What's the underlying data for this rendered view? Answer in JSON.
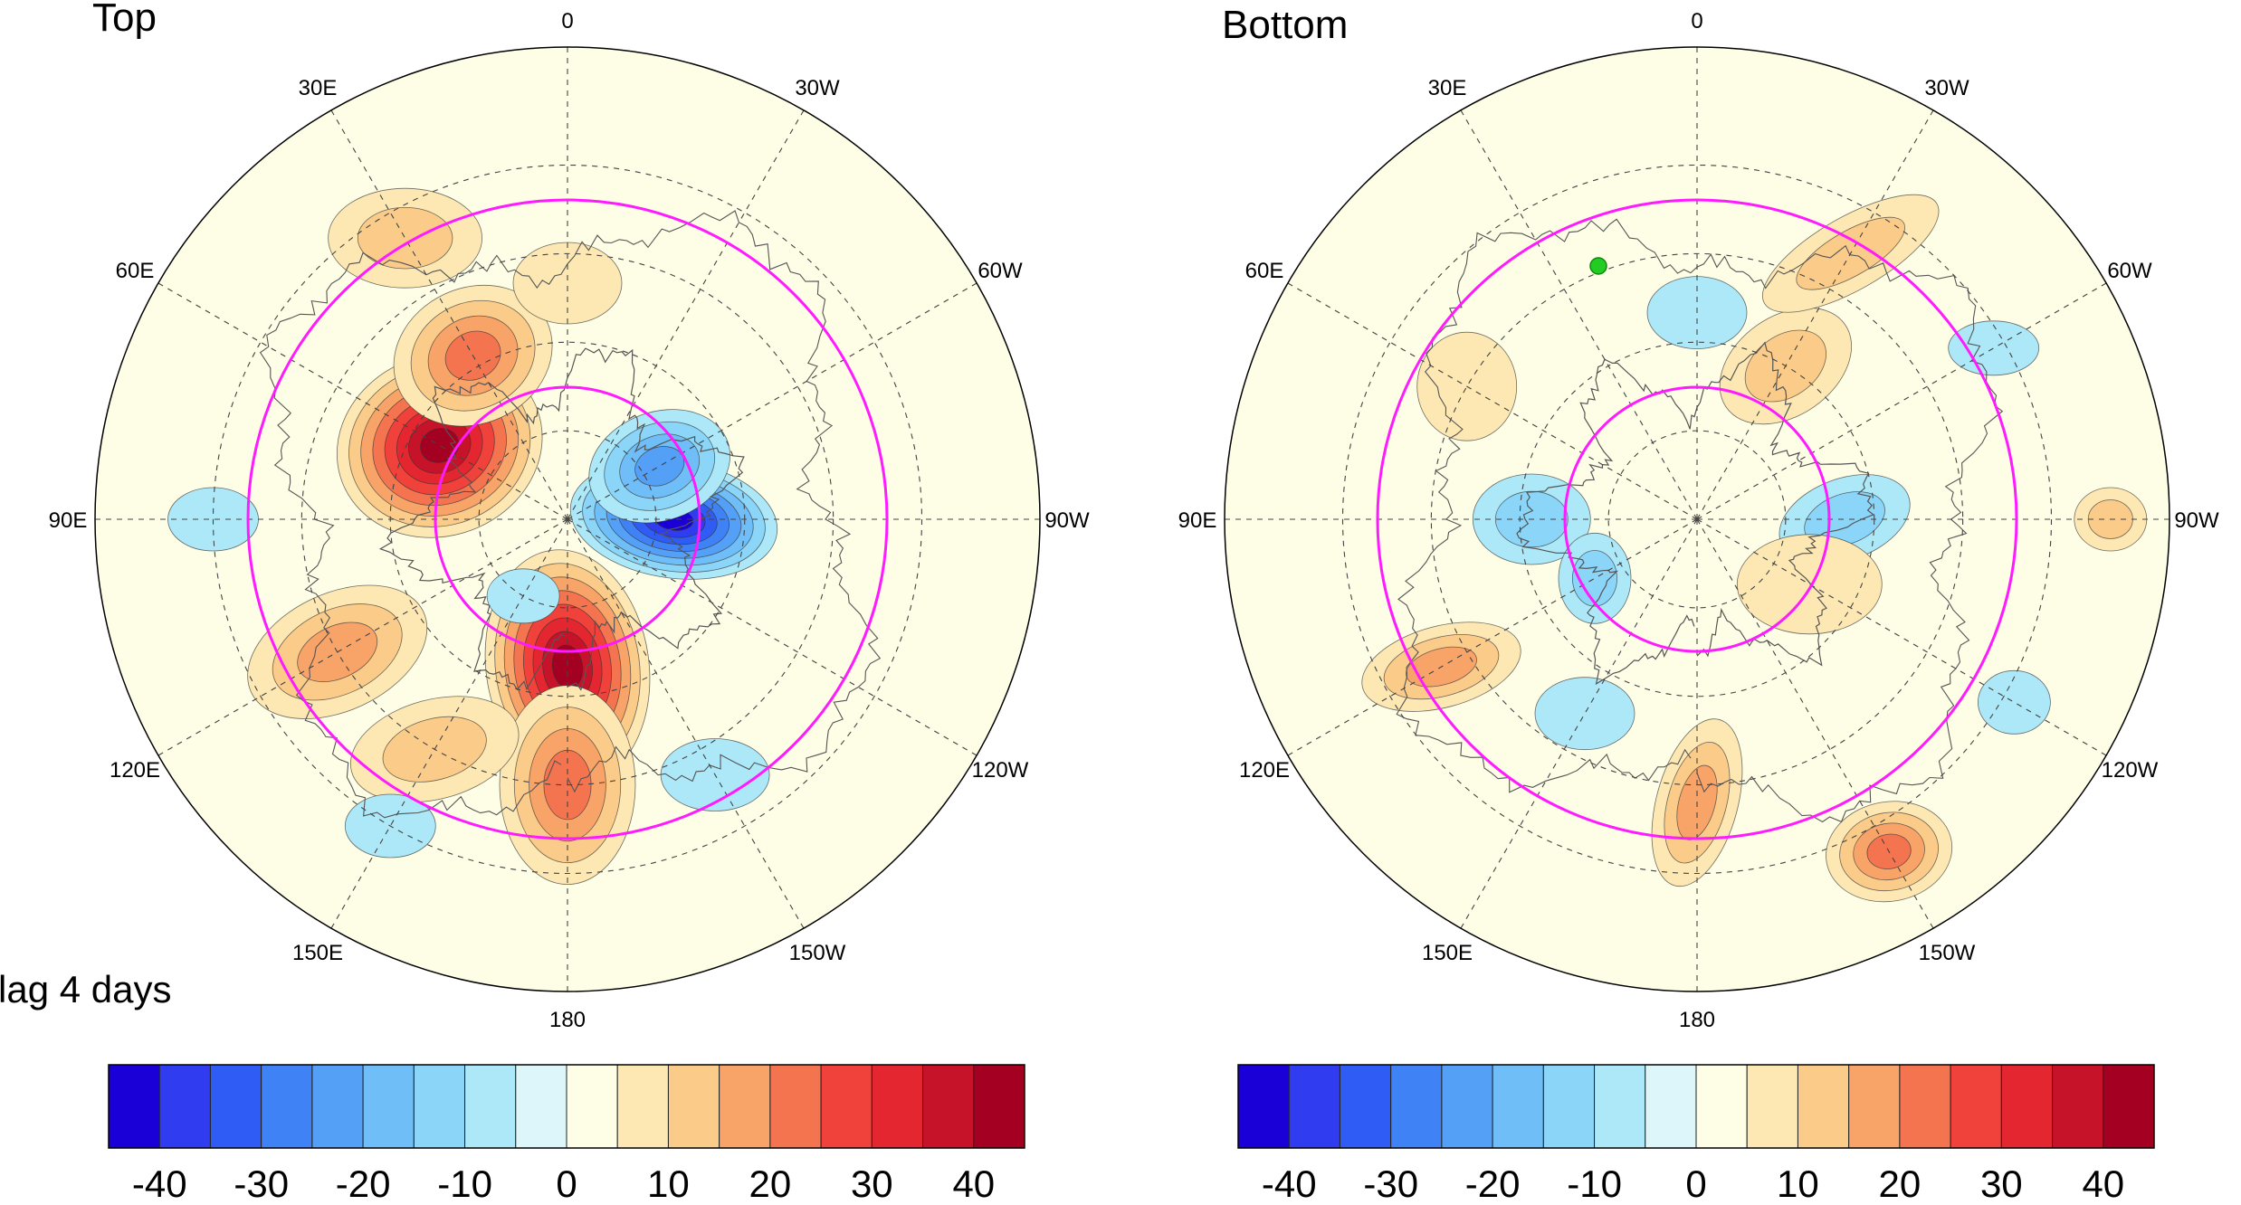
{
  "panels": [
    {
      "title": "Top",
      "longitude_labels": [
        "0",
        "30W",
        "60W",
        "90W",
        "120W",
        "150W",
        "180",
        "150E",
        "120E",
        "90E",
        "60E",
        "30E"
      ],
      "anomalies": [
        {
          "lon_label": "60E",
          "lat": 65,
          "value": 42,
          "rx": 115,
          "ry": 100,
          "rot": -20
        },
        {
          "lon_label": "30E",
          "lat": 58,
          "value": 22,
          "rx": 90,
          "ry": 75,
          "rot": -25
        },
        {
          "lon_label": "180",
          "lat": 65,
          "value": 42,
          "rx": 90,
          "ry": 130,
          "rot": -8
        },
        {
          "lon_label": "180",
          "lat": 45,
          "value": 20,
          "rx": 75,
          "ry": 110,
          "rot": 0
        },
        {
          "lon_label": "90W",
          "lat": 72,
          "value": -42,
          "rx": 115,
          "ry": 65,
          "rot": 8
        },
        {
          "lon_label": "60W",
          "lat": 72,
          "value": -22,
          "rx": 80,
          "ry": 60,
          "rot": -20
        },
        {
          "lon_label": "120E",
          "lat": 45,
          "value": 18,
          "rx": 105,
          "ry": 65,
          "rot": -25
        },
        {
          "lon_label": "150E",
          "lat": 45,
          "value": 14,
          "rx": 95,
          "ry": 55,
          "rot": -15
        },
        {
          "lon_label": "30E",
          "lat": 35,
          "value": 12,
          "rx": 85,
          "ry": 55,
          "rot": 0
        },
        {
          "lon_label": "0",
          "lat": 50,
          "value": 8,
          "rx": 60,
          "ry": 45,
          "rot": 0
        },
        {
          "lon_label": "150W",
          "lat": 40,
          "value": -6,
          "rx": 60,
          "ry": 40,
          "rot": 0
        },
        {
          "lon_label": "90E",
          "lat": 30,
          "value": -8,
          "rx": 50,
          "ry": 35,
          "rot": 0
        },
        {
          "lon_label": "150E",
          "lat": 30,
          "value": -6,
          "rx": 50,
          "ry": 35,
          "rot": 0
        },
        {
          "lon_label": "150E",
          "lat": 75,
          "value": -8,
          "rx": 40,
          "ry": 30,
          "rot": 0
        }
      ]
    },
    {
      "title": "Bottom",
      "longitude_labels": [
        "0",
        "30W",
        "60W",
        "90W",
        "120W",
        "150W",
        "180",
        "150E",
        "120E",
        "90E",
        "60E",
        "30E"
      ],
      "anomalies": [
        {
          "lon_label": "30W",
          "lat": 60,
          "value": 14,
          "rx": 80,
          "ry": 55,
          "rot": -35
        },
        {
          "lon_label": "30W",
          "lat": 38,
          "value": 10,
          "rx": 110,
          "ry": 40,
          "rot": -30
        },
        {
          "lon_label": "90W",
          "lat": 65,
          "value": -14,
          "rx": 75,
          "ry": 45,
          "rot": -20
        },
        {
          "lon_label": "120W",
          "lat": 68,
          "value": 8,
          "rx": 80,
          "ry": 55,
          "rot": 0
        },
        {
          "lon_label": "150W",
          "lat": 25,
          "value": 22,
          "rx": 70,
          "ry": 55,
          "rot": -10
        },
        {
          "lon_label": "180",
          "lat": 42,
          "value": 16,
          "rx": 45,
          "ry": 95,
          "rot": 15
        },
        {
          "lon_label": "120E",
          "lat": 40,
          "value": 18,
          "rx": 90,
          "ry": 45,
          "rot": -15
        },
        {
          "lon_label": "90E",
          "lat": 62,
          "value": -12,
          "rx": 65,
          "ry": 50,
          "rot": 0
        },
        {
          "lon_label": "120E",
          "lat": 70,
          "value": -14,
          "rx": 40,
          "ry": 50,
          "rot": 0
        },
        {
          "lon_label": "150E",
          "lat": 52,
          "value": -9,
          "rx": 55,
          "ry": 40,
          "rot": 0
        },
        {
          "lon_label": "60E",
          "lat": 45,
          "value": 8,
          "rx": 55,
          "ry": 60,
          "rot": 0
        },
        {
          "lon_label": "60W",
          "lat": 32,
          "value": -8,
          "rx": 50,
          "ry": 30,
          "rot": 0
        },
        {
          "lon_label": "120W",
          "lat": 28,
          "value": -8,
          "rx": 40,
          "ry": 35,
          "rot": 0
        },
        {
          "lon_label": "0",
          "lat": 55,
          "value": -6,
          "rx": 55,
          "ry": 40,
          "rot": 0
        },
        {
          "lon_label": "90W",
          "lat": 20,
          "value": 10,
          "rx": 40,
          "ry": 35,
          "rot": 0
        }
      ]
    }
  ],
  "lag_label": "lag 4 days",
  "colorbar": {
    "tick_labels": [
      "-40",
      "-30",
      "-20",
      "-10",
      "0",
      "10",
      "20",
      "30",
      "40"
    ],
    "tick_values": [
      -40,
      -30,
      -20,
      -10,
      0,
      10,
      20,
      30,
      40
    ],
    "bounds": [
      -40,
      -35,
      -30,
      -25,
      -20,
      -15,
      -10,
      -5,
      0,
      5,
      10,
      15,
      20,
      25,
      30,
      35,
      40
    ],
    "colors": [
      "#1a00d6",
      "#2f3cf0",
      "#2f5cf4",
      "#3f82f6",
      "#55a0f7",
      "#6fbef8",
      "#8ad5f8",
      "#ade8f8",
      "#dcf6f9",
      "#fefde6",
      "#fde8b4",
      "#fbcb8a",
      "#f8a469",
      "#f47450",
      "#f0423b",
      "#e3262f",
      "#c6132a",
      "#a40021"
    ]
  },
  "point_marker_color": "#22cc22",
  "contour_circle_color": "#ff1aff"
}
